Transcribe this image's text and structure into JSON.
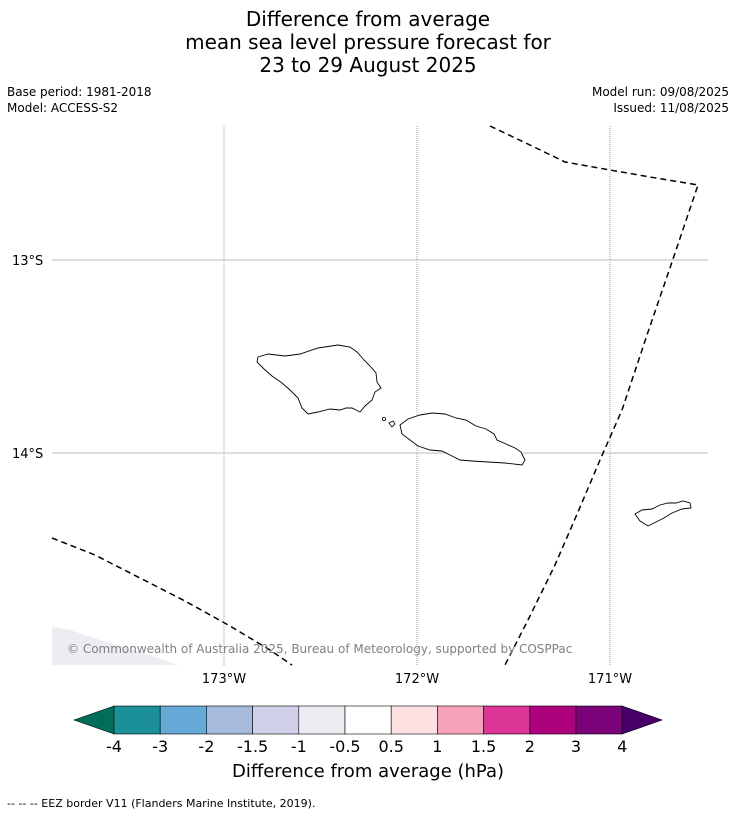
{
  "title": {
    "line1": "Difference from average",
    "line2": "mean sea level pressure forecast for",
    "line3": "23 to 29 August 2025"
  },
  "meta": {
    "base_period": "Base period: 1981-2018",
    "model": "Model: ACCESS-S2",
    "model_run": "Model run: 09/08/2025",
    "issued": "Issued: 11/08/2025"
  },
  "map": {
    "lat_labels": [
      "13°S",
      "14°S"
    ],
    "lon_labels": [
      "173°W",
      "172°W",
      "171°W"
    ],
    "copyright": "© Commonwealth of Australia 2025, Bureau of Meteorology, supported by COSPPac",
    "anomaly_shading_color": "#efebf2",
    "eez_line_color": "#000000"
  },
  "colorbar": {
    "ticks": [
      "-4",
      "-3",
      "-2",
      "-1.5",
      "-1",
      "-0.5",
      "0.5",
      "1",
      "1.5",
      "2",
      "3",
      "4"
    ],
    "colors": [
      "#1b9099",
      "#67aad7",
      "#a6bbdd",
      "#cfd0e8",
      "#efebf2",
      "#ffffff",
      "#fde0e2",
      "#f7a1bb",
      "#dd3497",
      "#ae017e",
      "#7a0177"
    ],
    "under_color": "#006e59",
    "over_color": "#49006a",
    "label": "Difference from average (hPa)"
  },
  "footer": {
    "legend": "--  --  -- EEZ border V11 (Flanders Marine Institute, 2019)."
  }
}
